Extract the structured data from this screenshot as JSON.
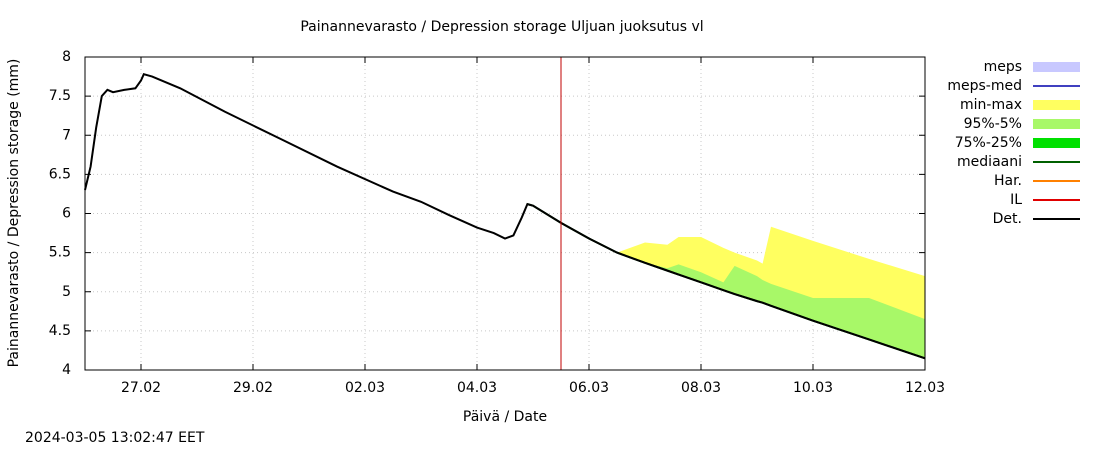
{
  "chart_data": {
    "type": "line",
    "title": "Painannevarasto / Depression storage   Uljuan juoksutus vl",
    "y_label": "Painannevarasto / Depression storage (mm)",
    "x_label": "Päivä / Date",
    "timestamp": "2024-03-05 13:02:47 EET",
    "xlim": [
      0,
      15
    ],
    "xticks": [
      {
        "value": 1,
        "label": "27.02"
      },
      {
        "value": 3,
        "label": "29.02"
      },
      {
        "value": 5,
        "label": "02.03"
      },
      {
        "value": 7,
        "label": "04.03"
      },
      {
        "value": 9,
        "label": "06.03"
      },
      {
        "value": 11,
        "label": "08.03"
      },
      {
        "value": 13,
        "label": "10.03"
      },
      {
        "value": 15,
        "label": "12.03"
      }
    ],
    "ylim": [
      4,
      8
    ],
    "yticks": [
      4,
      4.5,
      5,
      5.5,
      6,
      6.5,
      7,
      7.5,
      8
    ],
    "grid": true,
    "now_x": 8.5,
    "now_color": "#c00000",
    "series": [
      {
        "name": "meps",
        "color": "#c8c8ff",
        "kind": "band"
      },
      {
        "name": "meps-med",
        "color": "#4040c0",
        "kind": "line"
      },
      {
        "name": "min-max",
        "color": "#ffff60",
        "kind": "band",
        "x": [
          8.5,
          9,
          9.5,
          10,
          10.4,
          10.6,
          11,
          11.4,
          11.6,
          12,
          12.1,
          12.25,
          13,
          14,
          15
        ],
        "values": [
          5.88,
          5.68,
          5.5,
          5.63,
          5.6,
          5.7,
          5.7,
          5.56,
          5.5,
          5.4,
          5.36,
          5.83,
          5.65,
          5.42,
          5.2
        ],
        "low": [
          5.88,
          5.68,
          5.5,
          5.37,
          5.27,
          5.22,
          5.12,
          5.02,
          4.97,
          4.88,
          4.86,
          4.82,
          4.63,
          4.39,
          4.15
        ]
      },
      {
        "name": "95%-5%",
        "color": "#a8f868",
        "kind": "band",
        "x": [
          8.5,
          9,
          9.5,
          10,
          10.4,
          10.6,
          11,
          11.4,
          11.6,
          12,
          12.1,
          12.25,
          13,
          14,
          15
        ],
        "values": [
          5.88,
          5.68,
          5.5,
          5.37,
          5.3,
          5.35,
          5.25,
          5.12,
          5.33,
          5.2,
          5.15,
          5.1,
          4.92,
          4.92,
          4.65
        ],
        "low": [
          5.88,
          5.68,
          5.5,
          5.37,
          5.27,
          5.22,
          5.12,
          5.02,
          4.97,
          4.88,
          4.86,
          4.82,
          4.63,
          4.39,
          4.15
        ]
      },
      {
        "name": "75%-25%",
        "color": "#00e000",
        "kind": "band"
      },
      {
        "name": "mediaani",
        "color": "#006000",
        "kind": "line",
        "x": [
          7.9,
          8.0,
          8.5,
          9,
          9.5,
          10,
          10.4,
          10.6,
          11,
          11.4,
          11.6,
          12,
          12.1,
          12.25,
          13,
          14,
          15
        ],
        "values": [
          6.12,
          6.1,
          5.88,
          5.68,
          5.5,
          5.37,
          5.27,
          5.22,
          5.12,
          5.02,
          4.97,
          4.88,
          4.86,
          4.82,
          4.63,
          4.39,
          4.15
        ]
      },
      {
        "name": "Har.",
        "color": "#ff8000",
        "kind": "line"
      },
      {
        "name": "IL",
        "color": "#e00000",
        "kind": "line"
      },
      {
        "name": "Det.",
        "color": "#000000",
        "kind": "line",
        "x": [
          0,
          0.1,
          0.2,
          0.3,
          0.4,
          0.5,
          0.7,
          0.9,
          1.0,
          1.05,
          1.2,
          1.7,
          2.5,
          3.5,
          4.5,
          5.5,
          6.0,
          6.5,
          7.0,
          7.3,
          7.5,
          7.65,
          7.8,
          7.9,
          8.0,
          8.5,
          9,
          9.5,
          10,
          10.4,
          10.6,
          11,
          11.4,
          11.6,
          12,
          12.1,
          12.25,
          13,
          14,
          15
        ],
        "values": [
          6.3,
          6.6,
          7.1,
          7.5,
          7.58,
          7.55,
          7.58,
          7.6,
          7.7,
          7.78,
          7.75,
          7.6,
          7.3,
          6.95,
          6.6,
          6.28,
          6.15,
          5.98,
          5.82,
          5.75,
          5.68,
          5.72,
          5.95,
          6.12,
          6.1,
          5.88,
          5.68,
          5.5,
          5.37,
          5.27,
          5.22,
          5.12,
          5.02,
          4.97,
          4.88,
          4.86,
          4.82,
          4.63,
          4.39,
          4.15
        ]
      }
    ]
  }
}
